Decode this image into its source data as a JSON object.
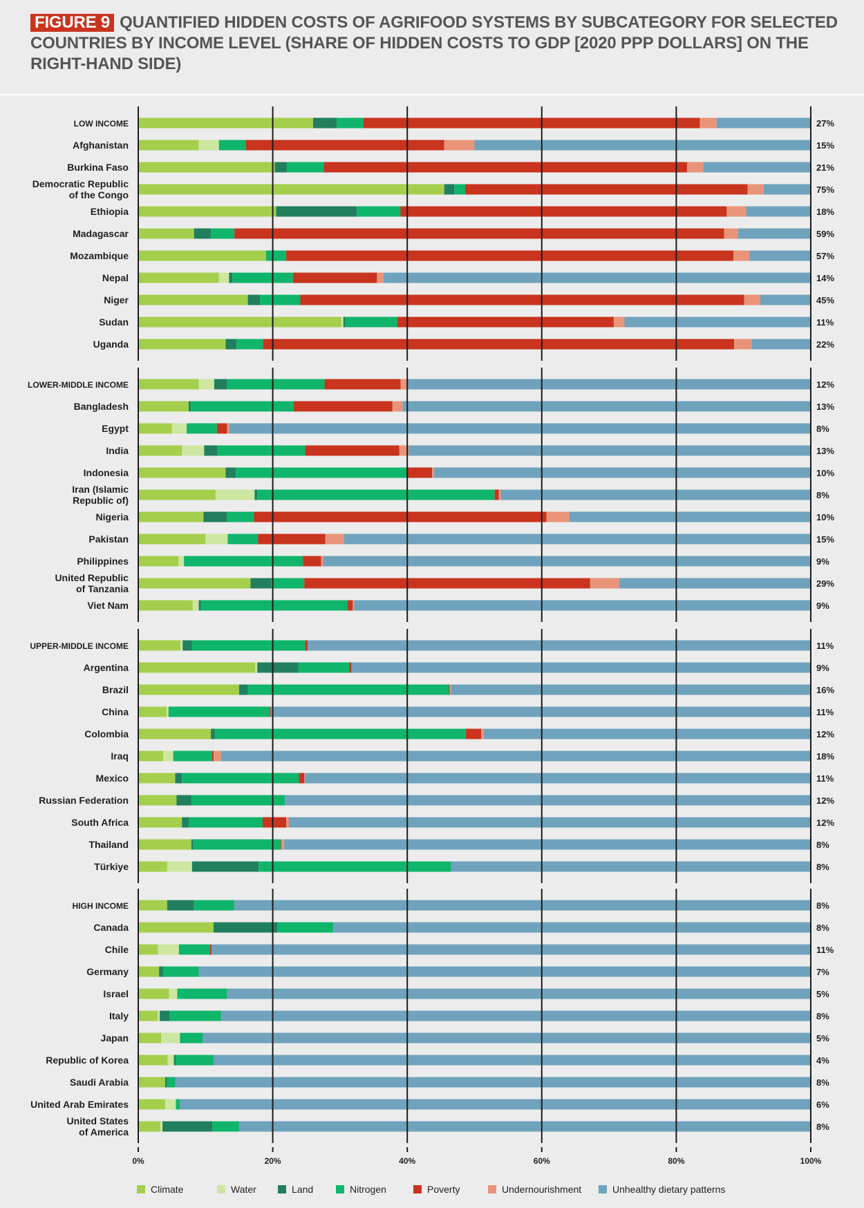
{
  "figure_label": "FIGURE 9",
  "title": "QUANTIFIED HIDDEN COSTS OF AGRIFOOD SYSTEMS BY SUBCATEGORY FOR SELECTED COUNTRIES BY INCOME LEVEL (SHARE OF HIDDEN COSTS TO GDP [2020 PPP DOLLARS] ON THE RIGHT-HAND SIDE)",
  "chart_data": {
    "type": "bar",
    "orientation": "horizontal",
    "stacked": true,
    "xlim": [
      0,
      100
    ],
    "xticks": [
      "0%",
      "20%",
      "40%",
      "60%",
      "80%",
      "100%"
    ],
    "xtick_values": [
      0,
      20,
      40,
      60,
      80,
      100
    ],
    "grid": true,
    "legend_position": "bottom",
    "series": [
      {
        "name": "Climate",
        "color": "#a4cf4c"
      },
      {
        "name": "Water",
        "color": "#cde6a0"
      },
      {
        "name": "Land",
        "color": "#217f5e"
      },
      {
        "name": "Nitrogen",
        "color": "#0fb56b"
      },
      {
        "name": "Poverty",
        "color": "#c8341e"
      },
      {
        "name": "Undernourishment",
        "color": "#e99479"
      },
      {
        "name": "Unhealthy dietary patterns",
        "color": "#6fa3bd"
      }
    ],
    "groups": [
      {
        "rows": [
          {
            "label": "LOW INCOME",
            "is_group": true,
            "share": "27%",
            "values": [
              26,
              0,
              3.5,
              4,
              50,
              2.5,
              14
            ]
          },
          {
            "label": "Afghanistan",
            "share": "15%",
            "values": [
              9,
              3,
              0,
              4,
              29.5,
              4.5,
              50
            ]
          },
          {
            "label": "Burkina Faso",
            "share": "21%",
            "values": [
              20.3,
              0,
              1.8,
              5.5,
              54,
              2.4,
              16
            ]
          },
          {
            "label": "Democratic Republic of the Congo",
            "share": "75%",
            "values": [
              45.5,
              0,
              1.5,
              1.6,
              42,
              2.4,
              7
            ]
          },
          {
            "label": "Ethiopia",
            "share": "18%",
            "values": [
              20.5,
              0,
              12,
              6.5,
              48.5,
              2.9,
              9.6
            ]
          },
          {
            "label": "Madagascar",
            "share": "59%",
            "values": [
              8.3,
              0,
              2.5,
              3.5,
              72.8,
              2.1,
              10.8
            ]
          },
          {
            "label": "Mozambique",
            "share": "57%",
            "values": [
              19,
              0,
              0,
              3,
              66.5,
              2.4,
              9.1
            ]
          },
          {
            "label": "Nepal",
            "share": "14%",
            "values": [
              12,
              1.5,
              0.5,
              9,
              12.5,
              1,
              63.5
            ]
          },
          {
            "label": "Niger",
            "share": "45%",
            "values": [
              16.3,
              0,
              1.8,
              6,
              66,
              2.4,
              7.5
            ]
          },
          {
            "label": "Sudan",
            "share": "11%",
            "values": [
              30.2,
              0.3,
              0.3,
              7.7,
              32.2,
              1.6,
              27.7
            ]
          },
          {
            "label": "Uganda",
            "share": "22%",
            "values": [
              13,
              0,
              1.6,
              4,
              70,
              2.6,
              8.8
            ]
          }
        ]
      },
      {
        "rows": [
          {
            "label": "LOWER-MIDDLE INCOME",
            "is_group": true,
            "share": "12%",
            "values": [
              9,
              2.3,
              1.9,
              14.5,
              11.3,
              1,
              60
            ]
          },
          {
            "label": "Bangladesh",
            "share": "13%",
            "values": [
              7.5,
              0,
              0.3,
              15.3,
              14.7,
              1.5,
              60.7
            ]
          },
          {
            "label": "Egypt",
            "share": "8%",
            "values": [
              5,
              2.2,
              0,
              4.5,
              1.5,
              0.3,
              86.5
            ]
          },
          {
            "label": "India",
            "share": "13%",
            "values": [
              6.5,
              3.3,
              2,
              13,
              14,
              1.4,
              59.8
            ]
          },
          {
            "label": "Indonesia",
            "share": "10%",
            "values": [
              13,
              0,
              1.5,
              25.5,
              3.7,
              0.3,
              56
            ]
          },
          {
            "label": "Iran (Islamic Republic of)",
            "share": "8%",
            "values": [
              11.5,
              5.8,
              0.4,
              35.3,
              0.6,
              0.3,
              46.1
            ]
          },
          {
            "label": "Nigeria",
            "share": "10%",
            "values": [
              9.7,
              0,
              3.5,
              4,
              43.5,
              3.4,
              35.9
            ]
          },
          {
            "label": "Pakistan",
            "share": "15%",
            "values": [
              10,
              3.3,
              0,
              4.5,
              10,
              2.8,
              69.4
            ]
          },
          {
            "label": "Philippines",
            "share": "9%",
            "values": [
              6,
              0.8,
              0,
              17.7,
              2.7,
              0.3,
              72.5
            ]
          },
          {
            "label": "United Republic of Tanzania",
            "share": "29%",
            "values": [
              16.7,
              0,
              3.1,
              4.9,
              42.5,
              4.3,
              28.5
            ]
          },
          {
            "label": "Viet Nam",
            "share": "9%",
            "values": [
              8.1,
              0.9,
              0.3,
              21.8,
              0.8,
              0.2,
              67.9
            ]
          }
        ]
      },
      {
        "rows": [
          {
            "label": "UPPER-MIDDLE INCOME",
            "is_group": true,
            "share": "11%",
            "values": [
              6.3,
              0.3,
              1.4,
              16.8,
              0.4,
              0,
              74.8
            ]
          },
          {
            "label": "Argentina",
            "share": "9%",
            "values": [
              17.4,
              0.3,
              6.1,
              7.6,
              0.3,
              0,
              68.3
            ]
          },
          {
            "label": "Brazil",
            "share": "16%",
            "values": [
              15,
              0,
              1.3,
              29.9,
              0.1,
              0.2,
              53.5
            ]
          },
          {
            "label": "China",
            "share": "11%",
            "values": [
              4.2,
              0.3,
              0,
              15,
              0.2,
              0,
              80.3
            ]
          },
          {
            "label": "Colombia",
            "share": "12%",
            "values": [
              10.8,
              0,
              0.6,
              37.3,
              2.3,
              0.4,
              48.6
            ]
          },
          {
            "label": "Iraq",
            "share": "18%",
            "values": [
              3.7,
              1.5,
              0,
              5.8,
              0.2,
              1.1,
              87.7
            ]
          },
          {
            "label": "Mexico",
            "share": "11%",
            "values": [
              5.5,
              0,
              1,
              17.4,
              0.8,
              0.1,
              75.2
            ]
          },
          {
            "label": "Russian Federation",
            "share": "12%",
            "values": [
              5.7,
              0,
              2.2,
              13.9,
              0,
              0,
              78.2
            ]
          },
          {
            "label": "South Africa",
            "share": "12%",
            "values": [
              6.5,
              0,
              1,
              11,
              3.5,
              0.4,
              77.6
            ]
          },
          {
            "label": "Thailand",
            "share": "8%",
            "values": [
              7.9,
              0,
              0.3,
              13,
              0.1,
              0.4,
              78.3
            ]
          },
          {
            "label": "Türkiye",
            "share": "8%",
            "values": [
              4.3,
              3.7,
              9.9,
              28.6,
              0,
              0,
              53.5
            ]
          }
        ]
      },
      {
        "rows": [
          {
            "label": "HIGH INCOME",
            "is_group": true,
            "share": "8%",
            "values": [
              4.3,
              0,
              4,
              6,
              0,
              0,
              85.7
            ]
          },
          {
            "label": "Canada",
            "share": "8%",
            "values": [
              11.2,
              0,
              9.5,
              8.3,
              0,
              0,
              71
            ]
          },
          {
            "label": "Chile",
            "share": "11%",
            "values": [
              2.9,
              3.1,
              0,
              4.6,
              0.2,
              0,
              88.4
            ]
          },
          {
            "label": "Germany",
            "share": "7%",
            "values": [
              3.1,
              0,
              0.6,
              5.3,
              0,
              0,
              91
            ]
          },
          {
            "label": "Israel",
            "share": "5%",
            "values": [
              4.6,
              1.2,
              0,
              7.4,
              0,
              0,
              86.8
            ]
          },
          {
            "label": "Italy",
            "share": "8%",
            "values": [
              2.9,
              0.3,
              1.5,
              7.6,
              0,
              0,
              87.7
            ]
          },
          {
            "label": "Japan",
            "share": "5%",
            "values": [
              3.4,
              2.8,
              0,
              3.4,
              0,
              0,
              90.4
            ]
          },
          {
            "label": "Republic of Korea",
            "share": "4%",
            "values": [
              4.4,
              0.9,
              0.3,
              5.6,
              0,
              0,
              88.8
            ]
          },
          {
            "label": "Saudi Arabia",
            "share": "8%",
            "values": [
              4,
              0,
              0.3,
              1.2,
              0,
              0,
              94.5
            ]
          },
          {
            "label": "United Arab Emirates",
            "share": "6%",
            "values": [
              4,
              1.6,
              0,
              0.6,
              0,
              0,
              93.8
            ]
          },
          {
            "label": "United States of America",
            "share": "8%",
            "values": [
              3.3,
              0.3,
              7.4,
              4,
              0,
              0,
              85
            ]
          }
        ]
      }
    ]
  }
}
